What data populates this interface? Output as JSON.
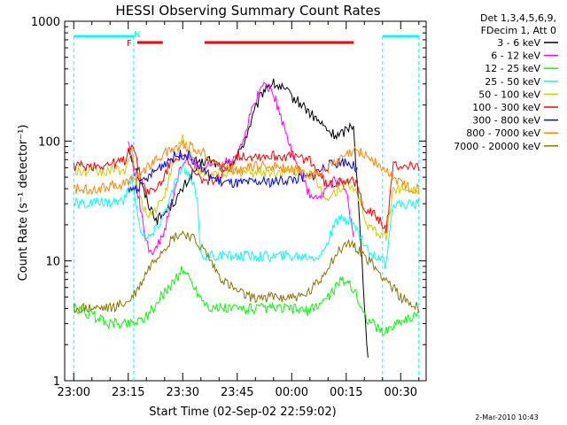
{
  "chart_data": {
    "type": "line",
    "title": "HESSI Observing Summary Count Rates",
    "xlabel": "Start Time (02-Sep-02 22:59:02)",
    "ylabel": "Count Rate (s⁻¹ detector⁻¹)",
    "y_scale": "log",
    "ylim": [
      1,
      1000
    ],
    "xlim_minutes": [
      -2.5,
      97
    ],
    "x_tick_minutes": [
      0,
      15,
      30,
      45,
      60,
      75,
      90
    ],
    "x_tick_labels": [
      "23:00",
      "23:15",
      "23:30",
      "23:45",
      "00:00",
      "00:15",
      "00:30"
    ],
    "y_tick_values": [
      1,
      10,
      100,
      1000
    ],
    "y_tick_labels": [
      "1",
      "10",
      "100",
      "1000"
    ],
    "grid": false,
    "legend_position": "right",
    "legend_header": [
      "Det 1,3,4,5,6,9,",
      "FDecim 1, Att 0"
    ],
    "footer": "2-Mar-2010 10:43",
    "series": [
      {
        "name": "3 - 6 keV",
        "color": "#000000",
        "x": [
          1,
          13,
          15,
          17,
          19,
          21,
          23,
          25,
          27,
          29,
          31,
          33,
          35,
          37,
          39,
          41,
          43,
          45,
          47,
          49,
          51,
          53,
          55,
          57,
          59,
          61,
          63,
          65,
          67,
          69,
          71,
          73,
          75,
          77,
          78,
          81
        ],
        "values": [
          null,
          null,
          90,
          60,
          40,
          28,
          22,
          25,
          30,
          35,
          45,
          55,
          65,
          70,
          65,
          60,
          65,
          75,
          100,
          150,
          220,
          290,
          300,
          280,
          250,
          220,
          200,
          170,
          150,
          130,
          115,
          110,
          125,
          140,
          45,
          1.5
        ]
      },
      {
        "name": "6 - 12 keV",
        "color": "#ff00ff",
        "x": [
          13,
          15,
          17,
          19,
          21,
          23,
          25,
          27,
          29,
          31,
          33,
          35,
          37,
          39,
          41,
          43,
          45,
          47,
          49,
          51,
          53,
          55,
          57,
          59,
          61,
          63,
          65,
          67,
          69,
          71,
          73,
          75,
          77,
          78
        ],
        "values": [
          null,
          100,
          50,
          20,
          12,
          13,
          18,
          30,
          55,
          72,
          66,
          60,
          62,
          64,
          66,
          70,
          80,
          110,
          180,
          260,
          300,
          250,
          160,
          100,
          70,
          50,
          35,
          32,
          38,
          45,
          47,
          40,
          15,
          null
        ]
      },
      {
        "name": "12 - 25 keV",
        "color": "#00ff00",
        "x": [
          0,
          5,
          10,
          15,
          18,
          20,
          22,
          24,
          26,
          28,
          30,
          32,
          34,
          36,
          38,
          40,
          45,
          50,
          55,
          60,
          65,
          70,
          72,
          74,
          76,
          78,
          80,
          85,
          90,
          95
        ],
        "values": [
          4,
          3.5,
          3,
          3,
          3.2,
          3.5,
          4,
          5,
          6,
          7,
          8.5,
          7,
          5.5,
          4.5,
          4,
          4,
          4,
          4,
          4,
          4,
          3.8,
          5,
          6,
          7,
          6.5,
          5,
          3.5,
          2.5,
          3.2,
          3.5
        ]
      },
      {
        "name": "25 - 50 keV",
        "color": "#00ffff",
        "x": [
          0,
          5,
          10,
          14,
          16,
          18,
          20,
          22,
          24,
          26,
          28,
          30,
          32,
          34,
          35,
          36,
          40,
          45,
          50,
          55,
          60,
          65,
          68,
          70,
          72,
          74,
          76,
          78,
          80,
          82,
          84,
          86,
          88,
          90,
          95
        ],
        "values": [
          30,
          30,
          31,
          32,
          50,
          20,
          15,
          17,
          22,
          30,
          45,
          60,
          48,
          35,
          11,
          11,
          11,
          11,
          11,
          11,
          11,
          11,
          11,
          15,
          20,
          23,
          22,
          18,
          14,
          11,
          11,
          9,
          30,
          30,
          30
        ]
      },
      {
        "name": "50 - 100 keV",
        "color": "#cccc00",
        "x": [
          0,
          5,
          10,
          14,
          16,
          18,
          20,
          22,
          24,
          26,
          28,
          30,
          32,
          34,
          36,
          38,
          40,
          45,
          50,
          55,
          60,
          65,
          68,
          70,
          72,
          74,
          76,
          78,
          80,
          82,
          84,
          86,
          88,
          90,
          95
        ],
        "values": [
          55,
          55,
          56,
          58,
          80,
          35,
          25,
          26,
          30,
          45,
          75,
          110,
          80,
          60,
          52,
          52,
          55,
          55,
          55,
          55,
          55,
          55,
          40,
          33,
          38,
          42,
          42,
          38,
          22,
          18,
          17,
          16,
          40,
          40,
          40
        ]
      },
      {
        "name": "100 - 300 keV",
        "color": "#ff0000",
        "x": [
          0,
          5,
          10,
          14,
          16,
          18,
          20,
          22,
          24,
          26,
          28,
          30,
          32,
          34,
          36,
          38,
          40,
          45,
          50,
          55,
          60,
          65,
          68,
          70,
          72,
          74,
          76,
          78,
          80,
          82,
          84,
          86,
          88,
          90,
          95
        ],
        "values": [
          62,
          62,
          64,
          68,
          100,
          55,
          38,
          38,
          45,
          60,
          75,
          78,
          60,
          50,
          47,
          48,
          48,
          75,
          75,
          75,
          75,
          70,
          50,
          42,
          45,
          48,
          47,
          42,
          28,
          25,
          22,
          18,
          62,
          62,
          62
        ]
      },
      {
        "name": "300 - 800 keV",
        "color": "#0000ff",
        "x": [
          0,
          10,
          15,
          18,
          20,
          22,
          24,
          26,
          28,
          30,
          32,
          34,
          36,
          38,
          40,
          42,
          45,
          50,
          55,
          60,
          65,
          68,
          70,
          72,
          74,
          76,
          78,
          80
        ],
        "values": [
          null,
          null,
          38,
          42,
          48,
          55,
          62,
          70,
          75,
          78,
          75,
          65,
          55,
          50,
          46,
          45,
          44,
          45,
          46,
          48,
          50,
          58,
          62,
          65,
          68,
          65,
          58,
          null
        ]
      },
      {
        "name": "800 - 7000 keV",
        "color": "#ff8800",
        "x": [
          0,
          5,
          10,
          15,
          18,
          20,
          22,
          24,
          26,
          28,
          30,
          32,
          34,
          36,
          38,
          40,
          42,
          45,
          48,
          50,
          55,
          58,
          60,
          63,
          65,
          68,
          70,
          72,
          74,
          76,
          78,
          80,
          82,
          84,
          86,
          88,
          90,
          92,
          95
        ],
        "values": [
          40,
          40,
          42,
          45,
          52,
          60,
          68,
          75,
          82,
          88,
          92,
          90,
          85,
          78,
          70,
          63,
          60,
          58,
          60,
          62,
          62,
          60,
          58,
          55,
          52,
          55,
          60,
          65,
          72,
          78,
          82,
          78,
          70,
          62,
          55,
          50,
          45,
          42,
          40
        ]
      },
      {
        "name": "7000 - 20000 keV",
        "color": "#887700",
        "x": [
          0,
          5,
          10,
          15,
          18,
          20,
          22,
          24,
          26,
          28,
          30,
          32,
          34,
          36,
          38,
          40,
          42,
          45,
          48,
          50,
          55,
          60,
          63,
          65,
          68,
          70,
          72,
          74,
          76,
          78,
          80,
          82,
          84,
          86,
          88,
          90,
          92,
          95
        ],
        "values": [
          4,
          4,
          4,
          4.5,
          6,
          8,
          10,
          12,
          14,
          16,
          17,
          16,
          14,
          12,
          9.5,
          7.5,
          6.5,
          5.5,
          5,
          5,
          5,
          5,
          5,
          5.5,
          7,
          9,
          11,
          13,
          14,
          13,
          11,
          9.5,
          8,
          7,
          6,
          5,
          4.5,
          4
        ]
      }
    ],
    "annotations": {
      "flags": [
        {
          "letter": "F",
          "color": "#ff0000",
          "x": 16
        },
        {
          "letter": "N",
          "color": "#00ffff",
          "x": 18
        }
      ],
      "eclipse_periods": [
        {
          "color": "#00ffff",
          "x_start": 0,
          "x_end": 16.5
        },
        {
          "color": "#00ffff",
          "x_start": 85,
          "x_end": 95
        }
      ],
      "flag_periods": [
        {
          "color": "#ff0000",
          "x_start": 17.5,
          "x_end": 24.5
        },
        {
          "color": "#ff0000",
          "x_start": 36,
          "x_end": 77
        }
      ]
    }
  }
}
